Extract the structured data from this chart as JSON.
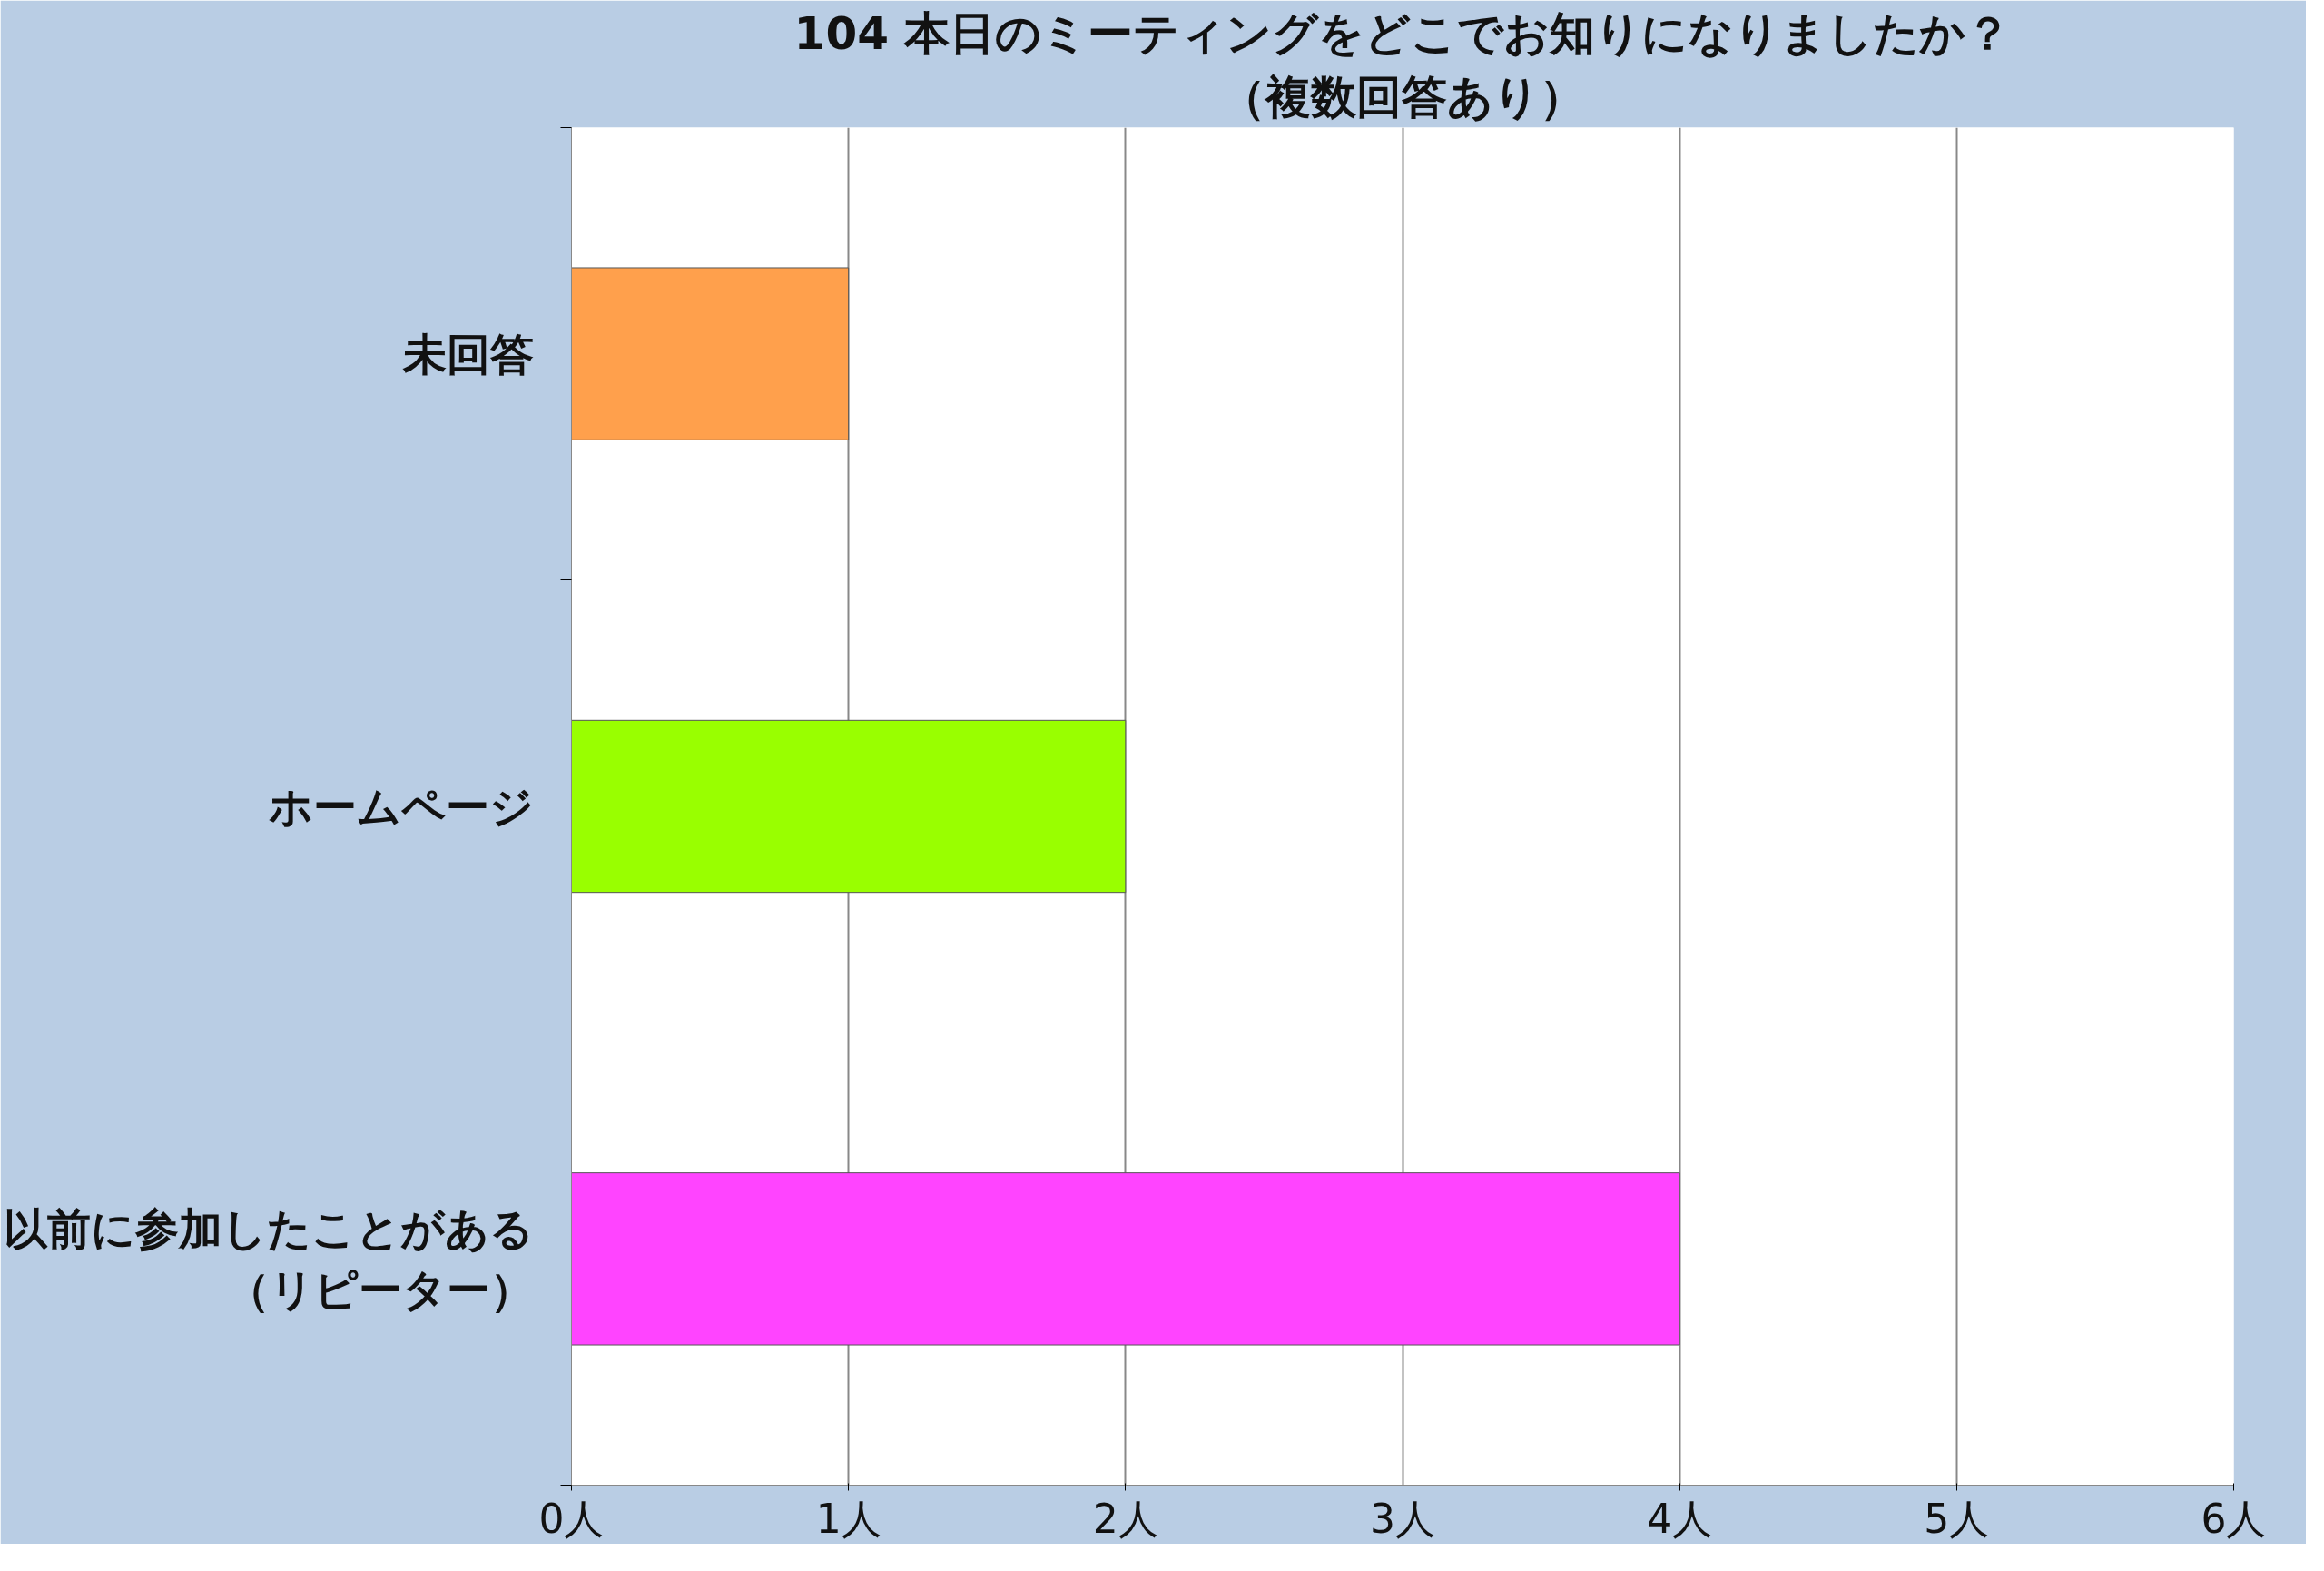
{
  "chart_data": {
    "type": "bar",
    "orientation": "horizontal",
    "title": "104 本日のミーティングをどこでお知りになりましたか？",
    "subtitle": "（複数回答あり）",
    "categories": [
      "未回答",
      "ホームページ",
      "以前に参加したことがある（リピーター）"
    ],
    "values": [
      1,
      2,
      4
    ],
    "colors": [
      "#ffa04c",
      "#99ff00",
      "#ff44ff"
    ],
    "xlim": [
      0,
      6
    ],
    "xticks": [
      {
        "value": 0,
        "label": "0人"
      },
      {
        "value": 1,
        "label": "1人"
      },
      {
        "value": 2,
        "label": "2人"
      },
      {
        "value": 3,
        "label": "3人"
      },
      {
        "value": 4,
        "label": "4人"
      },
      {
        "value": 5,
        "label": "5人"
      },
      {
        "value": 6,
        "label": "6人"
      }
    ],
    "grid": "x"
  }
}
